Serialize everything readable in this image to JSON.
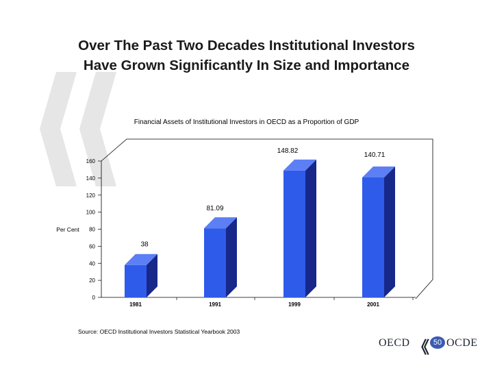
{
  "slide": {
    "title_line1": "Over The  Past Two Decades Institutional Investors",
    "title_line2": "Have Grown Significantly In Size and Importance",
    "source": "Source: OECD Institutional Investors Statistical Yearbook 2003",
    "page_number": "50"
  },
  "logo": {
    "left_text": "OECD",
    "right_text": "OCDE"
  },
  "colors": {
    "bar_front": "#2f5bea",
    "bar_side": "#17288a",
    "bar_top": "#5c7ff5",
    "watermark": "#e6e6e6"
  },
  "chart_data": {
    "type": "bar",
    "title": "Financial Assets of Institutional Investors  in OECD  as a  Proportion of GDP",
    "ylabel": "Per Cent",
    "xlabel": "",
    "categories": [
      "1981",
      "1991",
      "1999",
      "2001"
    ],
    "values": [
      38,
      81.09,
      148.82,
      140.71
    ],
    "data_labels": [
      "38",
      "81.09",
      "148.82",
      "140.71"
    ],
    "ylim": [
      0,
      160
    ],
    "yticks": [
      0,
      20,
      40,
      60,
      80,
      100,
      120,
      140,
      160
    ],
    "grid": false,
    "legend": "none"
  }
}
